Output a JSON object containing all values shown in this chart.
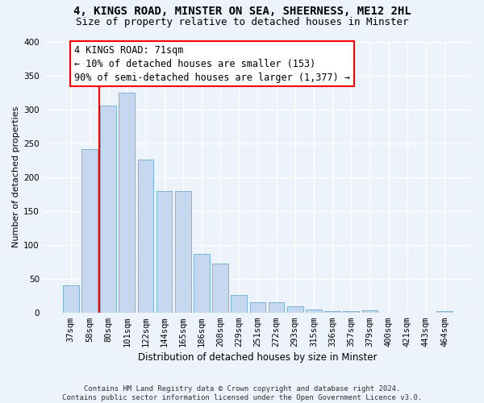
{
  "title1": "4, KINGS ROAD, MINSTER ON SEA, SHEERNESS, ME12 2HL",
  "title2": "Size of property relative to detached houses in Minster",
  "xlabel": "Distribution of detached houses by size in Minster",
  "ylabel": "Number of detached properties",
  "categories": [
    "37sqm",
    "58sqm",
    "80sqm",
    "101sqm",
    "122sqm",
    "144sqm",
    "165sqm",
    "186sqm",
    "208sqm",
    "229sqm",
    "251sqm",
    "272sqm",
    "293sqm",
    "315sqm",
    "336sqm",
    "357sqm",
    "379sqm",
    "400sqm",
    "421sqm",
    "443sqm",
    "464sqm"
  ],
  "values": [
    40,
    241,
    305,
    325,
    226,
    179,
    179,
    86,
    72,
    26,
    15,
    15,
    9,
    4,
    2,
    2,
    3,
    0,
    0,
    0,
    2
  ],
  "bar_color": "#c5d8f0",
  "bar_edge_color": "#7ab4d8",
  "bar_width": 0.85,
  "annotation_line1": "4 KINGS ROAD: 71sqm",
  "annotation_line2": "← 10% of detached houses are smaller (153)",
  "annotation_line3": "90% of semi-detached houses are larger (1,377) →",
  "box_color": "white",
  "box_edge_color": "red",
  "vline_color": "red",
  "vline_x": 1.5,
  "footnote": "Contains HM Land Registry data © Crown copyright and database right 2024.\nContains public sector information licensed under the Open Government Licence v3.0.",
  "ylim": [
    0,
    400
  ],
  "yticks": [
    0,
    50,
    100,
    150,
    200,
    250,
    300,
    350,
    400
  ],
  "bg_color": "#edf3fb",
  "plot_bg_color": "#edf3fb",
  "grid_color": "#ffffff",
  "title1_fontsize": 10,
  "title2_fontsize": 9,
  "ylabel_fontsize": 8,
  "xlabel_fontsize": 8.5,
  "tick_fontsize": 7.5,
  "annotation_fontsize": 8.5,
  "footnote_fontsize": 6.5
}
